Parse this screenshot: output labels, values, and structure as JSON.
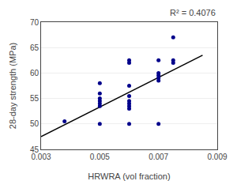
{
  "chart_data": {
    "type": "scatter",
    "xlabel": "HRWRA (vol fraction)",
    "ylabel": "28-day strength (MPa)",
    "annotation": "R² = 0.4076",
    "series": [
      {
        "type": "scatter",
        "color": "#00008B",
        "x": [
          0.0038,
          0.005,
          0.005,
          0.005,
          0.005,
          0.005,
          0.005,
          0.005,
          0.006,
          0.006,
          0.006,
          0.006,
          0.006,
          0.006,
          0.006,
          0.006,
          0.006,
          0.007,
          0.007,
          0.007,
          0.007,
          0.007,
          0.007,
          0.0075,
          0.0075,
          0.0075
        ],
        "values": [
          50.5,
          58.0,
          56.0,
          55.0,
          54.5,
          54.0,
          53.5,
          50.0,
          62.5,
          62.0,
          57.5,
          55.5,
          54.5,
          54.0,
          53.5,
          53.0,
          50.0,
          62.5,
          60.0,
          59.5,
          59.0,
          58.5,
          50.0,
          67.0,
          62.5,
          62.0
        ]
      },
      {
        "type": "line",
        "color": "#000000",
        "x": [
          0.003,
          0.0085
        ],
        "values": [
          47.5,
          63.5
        ]
      }
    ],
    "xlim": [
      0.003,
      0.009
    ],
    "ylim": [
      45,
      70
    ],
    "xticks": [
      0.003,
      0.005,
      0.007,
      0.009
    ],
    "yticks": [
      45,
      50,
      55,
      60,
      65,
      70
    ],
    "grid": "y"
  }
}
